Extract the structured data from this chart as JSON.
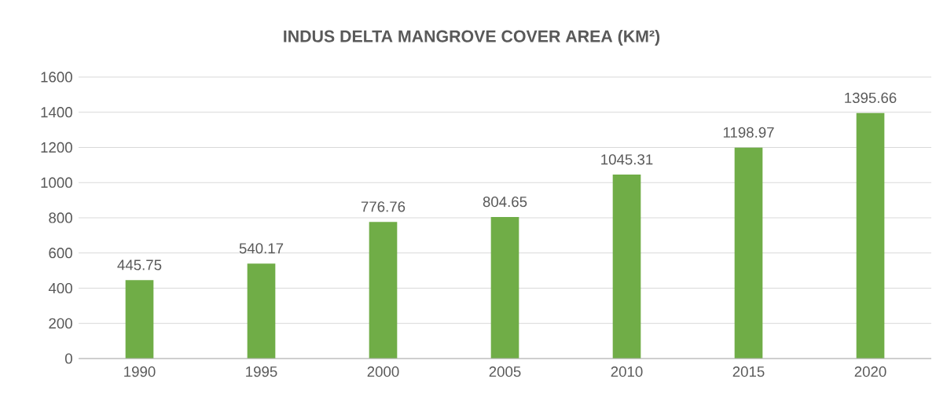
{
  "chart_data": {
    "type": "bar",
    "title": "INDUS DELTA MANGROVE COVER AREA (KM²)",
    "categories": [
      "1990",
      "1995",
      "2000",
      "2005",
      "2010",
      "2015",
      "2020"
    ],
    "values": [
      445.75,
      540.17,
      776.76,
      804.65,
      1045.31,
      1198.97,
      1395.66
    ],
    "value_labels": [
      "445.75",
      "540.17",
      "776.76",
      "804.65",
      "1045.31",
      "1198.97",
      "1395.66"
    ],
    "color": "#70ad47",
    "ylim": [
      0,
      1600
    ],
    "yticks": [
      0,
      200,
      400,
      600,
      800,
      1000,
      1200,
      1400,
      1600
    ],
    "grid": "y"
  }
}
